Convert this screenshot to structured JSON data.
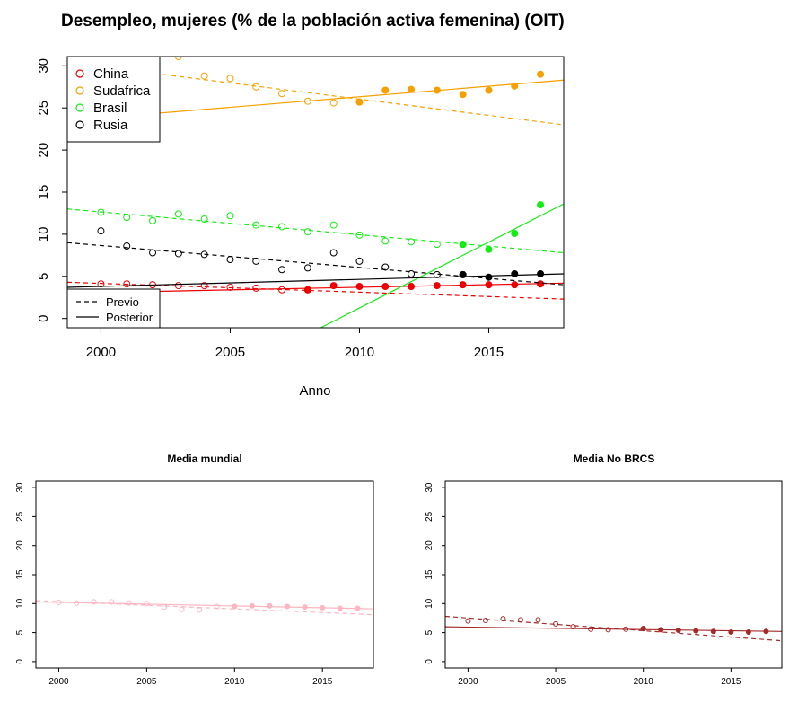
{
  "chart_data": [
    {
      "type": "scatter",
      "title": "Desempleo, mujeres (% de la población activa femenina) (OIT)",
      "xlabel": "Anno",
      "ylabel": "",
      "xlim": [
        1998.7,
        2017.9
      ],
      "ylim": [
        -1.1,
        31.1
      ],
      "xticks": [
        2000,
        2005,
        2010,
        2015
      ],
      "yticks": [
        0,
        5,
        10,
        15,
        20,
        25,
        30
      ],
      "grid": false,
      "legend_position": "top-left",
      "legend": [
        "China",
        "Sudafrica",
        "Brasil",
        "Rusia"
      ],
      "line_legend": [
        {
          "label": "Previo",
          "style": "dashed"
        },
        {
          "label": "Posterior",
          "style": "solid"
        }
      ],
      "series": [
        {
          "name": "China",
          "color": "#ee0000",
          "previo": {
            "x": [
              2000,
              2001,
              2002,
              2003,
              2004,
              2005,
              2006,
              2007,
              2008
            ],
            "y": [
              4.1,
              4.1,
              4.0,
              3.9,
              3.9,
              3.7,
              3.6,
              3.4,
              3.4
            ]
          },
          "posterior": {
            "x": [
              2008,
              2009,
              2010,
              2011,
              2012,
              2013,
              2014,
              2015,
              2016,
              2017
            ],
            "y": [
              3.4,
              3.9,
              3.8,
              3.8,
              3.8,
              3.9,
              4.0,
              4.0,
              4.0,
              4.1
            ]
          },
          "trend_previo": [
            [
              1998.7,
              4.3
            ],
            [
              2017.9,
              2.3
            ]
          ],
          "trend_posterior": [
            [
              1998.7,
              3.0
            ],
            [
              2017.9,
              4.2
            ]
          ]
        },
        {
          "name": "Sudafrica",
          "color": "#f5a000",
          "previo": {
            "x": [
              1999,
              2000,
              2001,
              2002,
              2003,
              2004,
              2005,
              2006,
              2007,
              2008,
              2009,
              2010
            ],
            "y": [
              31.0,
              31.0,
              31.0,
              31.0,
              31.1,
              28.8,
              28.5,
              27.5,
              26.7,
              25.8,
              25.6,
              25.7
            ]
          },
          "posterior": {
            "x": [
              2010,
              2011,
              2012,
              2013,
              2014,
              2015,
              2016,
              2017
            ],
            "y": [
              25.7,
              27.1,
              27.2,
              27.1,
              26.6,
              27.1,
              27.6,
              29.0
            ]
          },
          "trend_previo": [
            [
              1998.7,
              30.4
            ],
            [
              2017.9,
              23.0
            ]
          ],
          "trend_posterior": [
            [
              1998.7,
              23.5
            ],
            [
              2017.9,
              28.3
            ]
          ]
        },
        {
          "name": "Brasil",
          "color": "#11ee11",
          "previo": {
            "x": [
              2000,
              2001,
              2002,
              2003,
              2004,
              2005,
              2006,
              2007,
              2008,
              2009,
              2010,
              2011,
              2012,
              2013,
              2014
            ],
            "y": [
              12.6,
              12.0,
              11.6,
              12.4,
              11.8,
              12.2,
              11.1,
              10.9,
              10.3,
              11.1,
              9.9,
              9.2,
              9.1,
              8.8,
              8.8
            ]
          },
          "posterior": {
            "x": [
              2014,
              2015,
              2016,
              2017
            ],
            "y": [
              8.8,
              8.2,
              10.1,
              13.5
            ]
          },
          "trend_previo": [
            [
              1998.7,
              13.0
            ],
            [
              2017.9,
              7.8
            ]
          ],
          "trend_posterior": [
            [
              2008.5,
              -1.1
            ],
            [
              2017.9,
              13.6
            ]
          ]
        },
        {
          "name": "Rusia",
          "color": "#000000",
          "previo": {
            "x": [
              2000,
              2001,
              2002,
              2003,
              2004,
              2005,
              2006,
              2007,
              2008,
              2009,
              2010,
              2011,
              2012,
              2013,
              2014
            ],
            "y": [
              10.4,
              8.6,
              7.8,
              7.7,
              7.6,
              7.0,
              6.8,
              5.8,
              6.0,
              7.8,
              6.8,
              6.1,
              5.3,
              5.2,
              5.2
            ]
          },
          "posterior": {
            "x": [
              2014,
              2015,
              2016,
              2017
            ],
            "y": [
              5.2,
              4.9,
              5.3,
              5.3
            ]
          },
          "trend_previo": [
            [
              1998.7,
              9.0
            ],
            [
              2017.9,
              4.0
            ]
          ],
          "trend_posterior": [
            [
              1998.7,
              3.7
            ],
            [
              2017.9,
              5.3
            ]
          ]
        }
      ]
    },
    {
      "type": "scatter",
      "title": "Media mundial",
      "xlabel": "",
      "ylabel": "",
      "xlim": [
        1998.7,
        2017.9
      ],
      "ylim": [
        -1.1,
        31.1
      ],
      "xticks": [
        2000,
        2005,
        2010,
        2015
      ],
      "yticks": [
        0,
        5,
        10,
        15,
        20,
        25,
        30
      ],
      "grid": false,
      "series": [
        {
          "name": "",
          "color": "#ffb6c1",
          "previo": {
            "x": [
              2000,
              2001,
              2002,
              2003,
              2004,
              2005,
              2006,
              2007,
              2008,
              2009,
              2010
            ],
            "y": [
              10.2,
              10.1,
              10.3,
              10.3,
              10.1,
              10.0,
              9.4,
              9.0,
              8.9,
              9.5,
              9.5
            ]
          },
          "posterior": {
            "x": [
              2010,
              2011,
              2012,
              2013,
              2014,
              2015,
              2016,
              2017
            ],
            "y": [
              9.5,
              9.6,
              9.6,
              9.5,
              9.4,
              9.3,
              9.2,
              9.2
            ]
          },
          "trend_previo": [
            [
              1998.7,
              10.5
            ],
            [
              2017.9,
              8.1
            ]
          ],
          "trend_posterior": [
            [
              1998.7,
              10.3
            ],
            [
              2017.9,
              9.1
            ]
          ]
        }
      ]
    },
    {
      "type": "scatter",
      "title": "Media No BRCS",
      "xlabel": "",
      "ylabel": "",
      "xlim": [
        1998.7,
        2017.9
      ],
      "ylim": [
        -1.1,
        31.1
      ],
      "xticks": [
        2000,
        2005,
        2010,
        2015
      ],
      "yticks": [
        0,
        5,
        10,
        15,
        20,
        25,
        30
      ],
      "grid": false,
      "series": [
        {
          "name": "",
          "color": "#a52a2a",
          "previo": {
            "x": [
              2000,
              2001,
              2002,
              2003,
              2004,
              2005,
              2006,
              2007,
              2008,
              2009,
              2010
            ],
            "y": [
              7.0,
              7.1,
              7.4,
              7.2,
              7.2,
              6.5,
              6.0,
              5.6,
              5.5,
              5.6,
              5.7
            ]
          },
          "posterior": {
            "x": [
              2010,
              2011,
              2012,
              2013,
              2014,
              2015,
              2016,
              2017
            ],
            "y": [
              5.7,
              5.5,
              5.4,
              5.3,
              5.2,
              5.1,
              5.1,
              5.2
            ]
          },
          "trend_previo": [
            [
              1998.7,
              7.8
            ],
            [
              2017.9,
              3.6
            ]
          ],
          "trend_posterior": [
            [
              1998.7,
              6.0
            ],
            [
              2017.9,
              5.2
            ]
          ]
        }
      ]
    }
  ]
}
